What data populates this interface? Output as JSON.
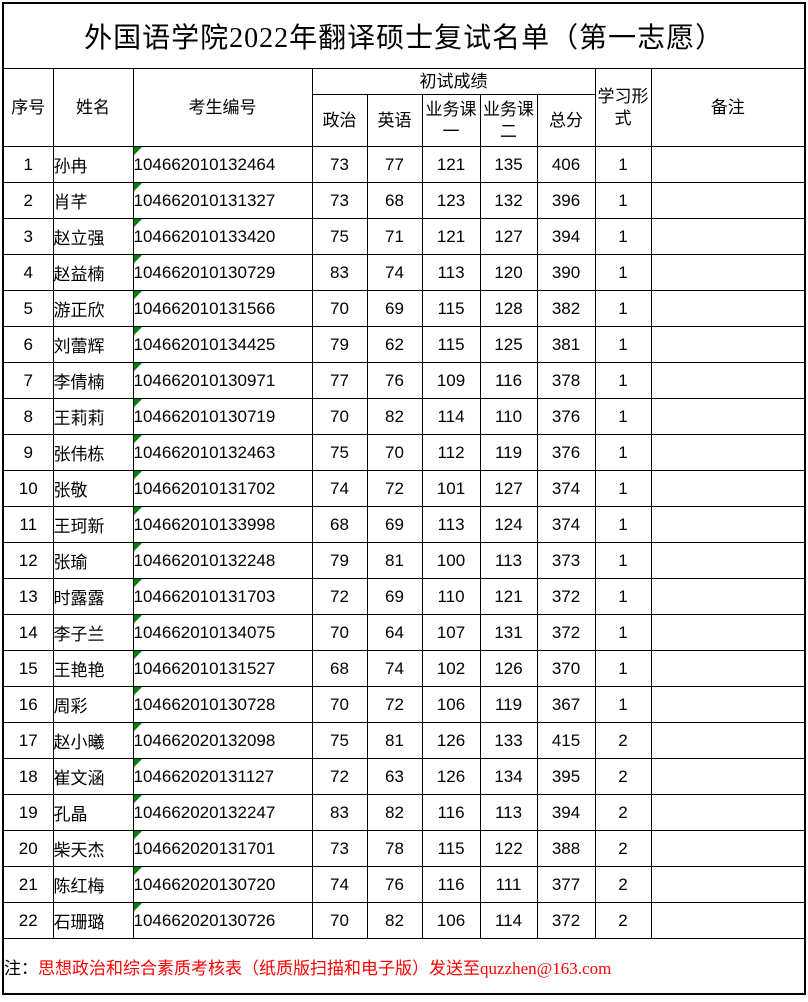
{
  "title": "外国语学院2022年翻译硕士复试名单（第一志愿）",
  "table": {
    "headers": {
      "seq": "序号",
      "name": "姓名",
      "candidate_id": "考生编号",
      "initial_scores_group": "初试成绩",
      "politics": "政治",
      "english": "英语",
      "course1": "业务课一",
      "course2": "业务课二",
      "total": "总分",
      "study_form": "学习形式",
      "remark": "备注"
    },
    "rows": [
      {
        "seq": "1",
        "name": "孙冉",
        "candidate_id": "104662010132464",
        "politics": "73",
        "english": "77",
        "course1": "121",
        "course2": "135",
        "total": "406",
        "study_form": "1",
        "remark": ""
      },
      {
        "seq": "2",
        "name": "肖芊",
        "candidate_id": "104662010131327",
        "politics": "73",
        "english": "68",
        "course1": "123",
        "course2": "132",
        "total": "396",
        "study_form": "1",
        "remark": ""
      },
      {
        "seq": "3",
        "name": "赵立强",
        "candidate_id": "104662010133420",
        "politics": "75",
        "english": "71",
        "course1": "121",
        "course2": "127",
        "total": "394",
        "study_form": "1",
        "remark": ""
      },
      {
        "seq": "4",
        "name": "赵益楠",
        "candidate_id": "104662010130729",
        "politics": "83",
        "english": "74",
        "course1": "113",
        "course2": "120",
        "total": "390",
        "study_form": "1",
        "remark": ""
      },
      {
        "seq": "5",
        "name": "游正欣",
        "candidate_id": "104662010131566",
        "politics": "70",
        "english": "69",
        "course1": "115",
        "course2": "128",
        "total": "382",
        "study_form": "1",
        "remark": ""
      },
      {
        "seq": "6",
        "name": "刘蕾辉",
        "candidate_id": "104662010134425",
        "politics": "79",
        "english": "62",
        "course1": "115",
        "course2": "125",
        "total": "381",
        "study_form": "1",
        "remark": ""
      },
      {
        "seq": "7",
        "name": "李倩楠",
        "candidate_id": "104662010130971",
        "politics": "77",
        "english": "76",
        "course1": "109",
        "course2": "116",
        "total": "378",
        "study_form": "1",
        "remark": ""
      },
      {
        "seq": "8",
        "name": "王莉莉",
        "candidate_id": "104662010130719",
        "politics": "70",
        "english": "82",
        "course1": "114",
        "course2": "110",
        "total": "376",
        "study_form": "1",
        "remark": ""
      },
      {
        "seq": "9",
        "name": "张伟栋",
        "candidate_id": "104662010132463",
        "politics": "75",
        "english": "70",
        "course1": "112",
        "course2": "119",
        "total": "376",
        "study_form": "1",
        "remark": ""
      },
      {
        "seq": "10",
        "name": "张敬",
        "candidate_id": "104662010131702",
        "politics": "74",
        "english": "72",
        "course1": "101",
        "course2": "127",
        "total": "374",
        "study_form": "1",
        "remark": ""
      },
      {
        "seq": "11",
        "name": "王珂新",
        "candidate_id": "104662010133998",
        "politics": "68",
        "english": "69",
        "course1": "113",
        "course2": "124",
        "total": "374",
        "study_form": "1",
        "remark": ""
      },
      {
        "seq": "12",
        "name": "张瑜",
        "candidate_id": "104662010132248",
        "politics": "79",
        "english": "81",
        "course1": "100",
        "course2": "113",
        "total": "373",
        "study_form": "1",
        "remark": ""
      },
      {
        "seq": "13",
        "name": "时露露",
        "candidate_id": "104662010131703",
        "politics": "72",
        "english": "69",
        "course1": "110",
        "course2": "121",
        "total": "372",
        "study_form": "1",
        "remark": ""
      },
      {
        "seq": "14",
        "name": "李子兰",
        "candidate_id": "104662010134075",
        "politics": "70",
        "english": "64",
        "course1": "107",
        "course2": "131",
        "total": "372",
        "study_form": "1",
        "remark": ""
      },
      {
        "seq": "15",
        "name": "王艳艳",
        "candidate_id": "104662010131527",
        "politics": "68",
        "english": "74",
        "course1": "102",
        "course2": "126",
        "total": "370",
        "study_form": "1",
        "remark": ""
      },
      {
        "seq": "16",
        "name": "周彩",
        "candidate_id": "104662010130728",
        "politics": "70",
        "english": "72",
        "course1": "106",
        "course2": "119",
        "total": "367",
        "study_form": "1",
        "remark": ""
      },
      {
        "seq": "17",
        "name": "赵小曦",
        "candidate_id": "104662020132098",
        "politics": "75",
        "english": "81",
        "course1": "126",
        "course2": "133",
        "total": "415",
        "study_form": "2",
        "remark": ""
      },
      {
        "seq": "18",
        "name": "崔文涵",
        "candidate_id": "104662020131127",
        "politics": "72",
        "english": "63",
        "course1": "126",
        "course2": "134",
        "total": "395",
        "study_form": "2",
        "remark": ""
      },
      {
        "seq": "19",
        "name": "孔晶",
        "candidate_id": "104662020132247",
        "politics": "83",
        "english": "82",
        "course1": "116",
        "course2": "113",
        "total": "394",
        "study_form": "2",
        "remark": ""
      },
      {
        "seq": "20",
        "name": "柴天杰",
        "candidate_id": "104662020131701",
        "politics": "73",
        "english": "78",
        "course1": "115",
        "course2": "122",
        "total": "388",
        "study_form": "2",
        "remark": ""
      },
      {
        "seq": "21",
        "name": "陈红梅",
        "candidate_id": "104662020130720",
        "politics": "74",
        "english": "76",
        "course1": "116",
        "course2": "111",
        "total": "377",
        "study_form": "2",
        "remark": ""
      },
      {
        "seq": "22",
        "name": "石珊璐",
        "candidate_id": "104662020130726",
        "politics": "70",
        "english": "82",
        "course1": "106",
        "course2": "114",
        "total": "372",
        "study_form": "2",
        "remark": ""
      }
    ]
  },
  "note": {
    "prefix": "注：",
    "text": "思想政治和综合素质考核表（纸质版扫描和电子版）发送至quzzhen@163.com"
  },
  "colors": {
    "note_red": "#ff0000",
    "triangle_green": "#008200"
  }
}
